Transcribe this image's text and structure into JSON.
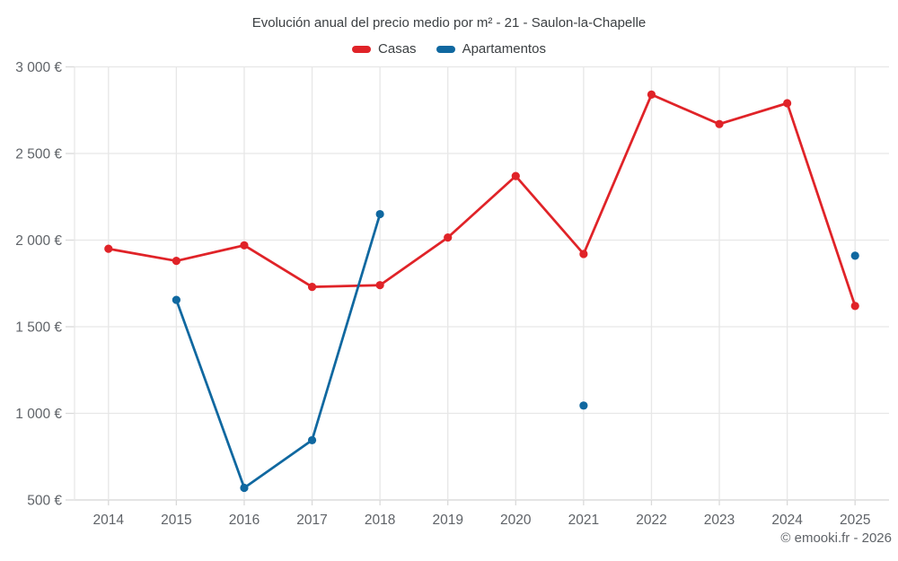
{
  "page": {
    "title": "Evolución anual del precio medio por m² - 21 - Saulon-la-Chapelle",
    "copyright": "© emooki.fr - 2026",
    "background": "#ffffff"
  },
  "colors": {
    "casas": "#e02328",
    "apartamentos": "#1068a0",
    "grid": "#e7e7e7",
    "axis": "#d4d4d4",
    "tick": "#d9d9d9",
    "title_text": "#3c4043",
    "tick_text": "#5f6368"
  },
  "chart_data": {
    "type": "line",
    "title": "Evolución anual del precio medio por m² - 21 - Saulon-la-Chapelle",
    "categories": [
      "2014",
      "2015",
      "2016",
      "2017",
      "2018",
      "2019",
      "2020",
      "2021",
      "2022",
      "2023",
      "2024",
      "2025"
    ],
    "series": [
      {
        "name": "Casas",
        "color": "#e02328",
        "values": [
          1950,
          1880,
          1970,
          1730,
          1740,
          2015,
          2370,
          1920,
          2840,
          2670,
          2790,
          1620
        ]
      },
      {
        "name": "Apartamentos",
        "color": "#1068a0",
        "values": [
          null,
          1655,
          570,
          845,
          2150,
          null,
          null,
          1045,
          null,
          null,
          null,
          1910
        ]
      }
    ],
    "xlabel": "",
    "ylabel": "",
    "ylim": [
      500,
      3000
    ],
    "y_ticks": [
      500,
      1000,
      1500,
      2000,
      2500,
      3000
    ],
    "y_tick_labels": [
      "500 €",
      "1 000 €",
      "1 500 €",
      "2 000 €",
      "2 500 €",
      "3 000 €"
    ],
    "grid": true,
    "legend_position": "top",
    "marker": "circle",
    "unit": "€"
  }
}
